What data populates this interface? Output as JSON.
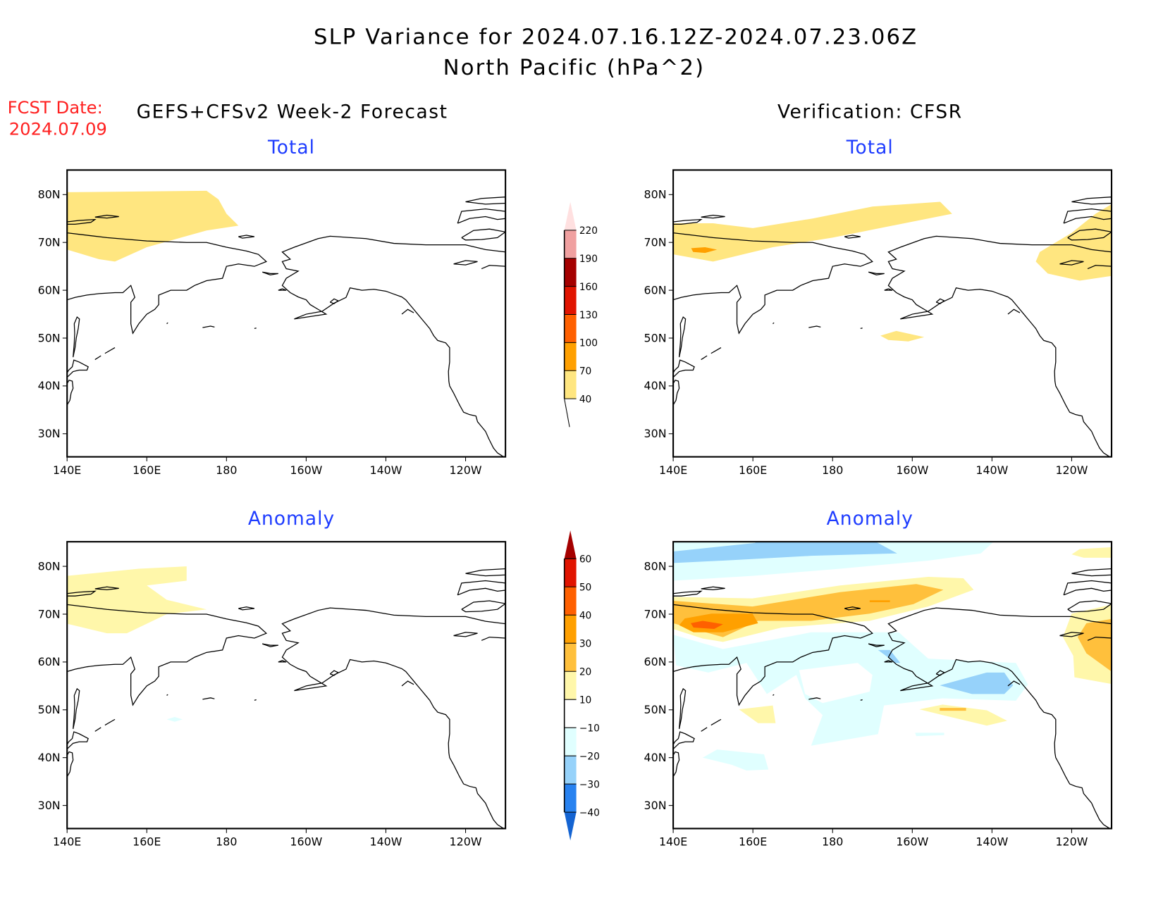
{
  "header": {
    "title": "SLP Variance for 2024.07.16.12Z-2024.07.23.06Z",
    "subtitle": "North Pacific (hPa^2)",
    "fcst_label": "FCST Date:",
    "fcst_date": "2024.07.09",
    "left_heading": "GEFS+CFSv2 Week-2 Forecast",
    "right_heading": "Verification: CFSR"
  },
  "chart_data": {
    "type": "heatmap",
    "map": {
      "lon_range_east": [
        140,
        250
      ],
      "lat_range": [
        25,
        85
      ]
    },
    "x_ticks": [
      "140E",
      "160E",
      "180",
      "160W",
      "140W",
      "120W"
    ],
    "x_tick_lons": [
      140,
      160,
      180,
      200,
      220,
      240
    ],
    "y_ticks": [
      "30N",
      "40N",
      "50N",
      "60N",
      "70N",
      "80N"
    ],
    "y_tick_lats": [
      30,
      40,
      50,
      60,
      70,
      80
    ],
    "colorbars": {
      "total": {
        "labels": [
          "40",
          "70",
          "100",
          "130",
          "160",
          "190",
          "220"
        ],
        "colors": [
          "#ffe680",
          "#ffa000",
          "#ff6000",
          "#e11400",
          "#a50000",
          "#f0a0a0",
          "#ffe0e0"
        ]
      },
      "anomaly": {
        "labels": [
          "-40",
          "-30",
          "-20",
          "-10",
          "10",
          "20",
          "30",
          "40",
          "50",
          "60"
        ],
        "colors": [
          "#1464d2",
          "#2882f0",
          "#96d2fa",
          "#e0ffff",
          "#ffffff",
          "#fff7aa",
          "#ffc03c",
          "#ffa000",
          "#ff6000",
          "#e11400",
          "#a50000"
        ]
      }
    },
    "panels": [
      {
        "id": "forecast-total",
        "title": "Total",
        "colorbar": "total",
        "regions": [
          {
            "range": "40-70",
            "color": "#ffe680",
            "lonlat": [
              [
                140,
                80.5
              ],
              [
                175,
                80.8
              ],
              [
                178,
                79
              ],
              [
                180,
                76
              ],
              [
                183,
                73.5
              ],
              [
                175,
                72.5
              ],
              [
                160,
                69
              ],
              [
                152,
                66
              ],
              [
                148,
                66.5
              ],
              [
                140,
                68.5
              ]
            ]
          }
        ]
      },
      {
        "id": "verification-total",
        "title": "Total",
        "colorbar": "total",
        "regions": [
          {
            "range": "40-70",
            "color": "#ffe680",
            "lonlat": [
              [
                140,
                74
              ],
              [
                150,
                74
              ],
              [
                160,
                73
              ],
              [
                175,
                75
              ],
              [
                190,
                77.5
              ],
              [
                207,
                78.5
              ],
              [
                210,
                76
              ],
              [
                195,
                73.5
              ],
              [
                180,
                71
              ],
              [
                165,
                69
              ],
              [
                150,
                66
              ],
              [
                140,
                67.5
              ]
            ]
          },
          {
            "range": "70-100",
            "color": "#ffa000",
            "lonlat": [
              [
                144.5,
                68.8
              ],
              [
                148,
                69
              ],
              [
                151,
                68.5
              ],
              [
                148,
                67.8
              ],
              [
                145,
                68
              ]
            ]
          },
          {
            "range": "40-70",
            "color": "#ffe680",
            "lonlat": [
              [
                232,
                68
              ],
              [
                240,
                72
              ],
              [
                246,
                76
              ],
              [
                250,
                78
              ],
              [
                250,
                63
              ],
              [
                242,
                62
              ],
              [
                234,
                63.5
              ],
              [
                231,
                66
              ]
            ]
          },
          {
            "range": "40-70",
            "color": "#ffe680",
            "lonlat": [
              [
                192,
                50.5
              ],
              [
                196,
                51.5
              ],
              [
                203,
                50.2
              ],
              [
                199,
                49.3
              ],
              [
                194,
                49.6
              ]
            ]
          }
        ]
      },
      {
        "id": "forecast-anomaly",
        "title": "Anomaly",
        "colorbar": "anomaly",
        "regions": [
          {
            "range": "10-20",
            "color": "#fff7aa",
            "lonlat": [
              [
                140,
                78
              ],
              [
                158,
                79.5
              ],
              [
                170,
                80
              ],
              [
                170,
                77
              ],
              [
                160,
                76
              ],
              [
                165,
                73
              ],
              [
                175,
                71
              ],
              [
                165,
                70
              ],
              [
                155,
                66
              ],
              [
                150,
                66
              ],
              [
                140,
                68
              ]
            ]
          },
          {
            "range": "-10--20",
            "color": "#e0ffff",
            "lonlat": [
              [
                165,
                48
              ],
              [
                167,
                48.5
              ],
              [
                169,
                48
              ],
              [
                167,
                47.5
              ]
            ]
          }
        ]
      },
      {
        "id": "verification-anomaly",
        "title": "Anomaly",
        "colorbar": "anomaly",
        "regions": [
          {
            "range": "-10--20",
            "color": "#e0ffff",
            "lonlat": [
              [
                140,
                85.2
              ],
              [
                220.5,
                85.2
              ],
              [
                217.2,
                82.7
              ],
              [
                204,
                81.2
              ],
              [
                181.9,
                79.5
              ],
              [
                159.9,
                78
              ],
              [
                140,
                77
              ]
            ]
          },
          {
            "range": "-20--30",
            "color": "#96d2fa",
            "lonlat": [
              [
                140,
                83.1
              ],
              [
                160.6,
                84.9
              ],
              [
                160.6,
                85.2
              ],
              [
                190.7,
                85.2
              ],
              [
                196.2,
                82.7
              ],
              [
                174.6,
                82.2
              ],
              [
                152.5,
                81.2
              ],
              [
                140,
                80.7
              ]
            ]
          },
          {
            "range": "-10--20",
            "color": "#e0ffff",
            "lonlat": [
              [
                140,
                65.7
              ],
              [
                152.5,
                62.7
              ],
              [
                174.6,
                66.2
              ],
              [
                196.6,
                66.2
              ],
              [
                204,
                60.7
              ],
              [
                226,
                59.8
              ],
              [
                229,
                55.3
              ],
              [
                226,
                51.9
              ],
              [
                207.6,
                52.4
              ],
              [
                192.9,
                50.9
              ],
              [
                191.4,
                44.9
              ],
              [
                174.6,
                42.5
              ],
              [
                177.5,
                48.9
              ],
              [
                173.1,
                52.4
              ],
              [
                170.9,
                57.3
              ],
              [
                163.5,
                53.3
              ],
              [
                158.4,
                59.8
              ],
              [
                148.8,
                57.8
              ],
              [
                140.7,
                59.3
              ]
            ]
          },
          {
            "range": "-10-10",
            "color": "#ffffff",
            "lonlat": [
              [
                171.6,
                58.3
              ],
              [
                186.3,
                59.8
              ],
              [
                190,
                57.3
              ],
              [
                189.3,
                53.8
              ],
              [
                177.5,
                51.4
              ],
              [
                173.1,
                53.3
              ]
            ]
          },
          {
            "range": "-20--30",
            "color": "#96d2fa",
            "lonlat": [
              [
                206.9,
                55.1
              ],
              [
                218.7,
                57.8
              ],
              [
                223.1,
                57.8
              ],
              [
                225.3,
                55.1
              ],
              [
                223.1,
                53.3
              ],
              [
                215,
                53.3
              ]
            ]
          },
          {
            "range": "-20--30",
            "color": "#96d2fa",
            "lonlat": [
              [
                191.4,
                62.5
              ],
              [
                194.4,
                62.5
              ],
              [
                197,
                59.8
              ],
              [
                195.8,
                59.8
              ]
            ]
          },
          {
            "range": "-10--20",
            "color": "#e0ffff",
            "lonlat": [
              [
                147.4,
                40
              ],
              [
                151,
                41.7
              ],
              [
                162.8,
                40.7
              ],
              [
                163.9,
                37.5
              ],
              [
                158.4,
                37.3
              ],
              [
                154.7,
                38.5
              ]
            ]
          },
          {
            "range": "-10--20",
            "color": "#e0ffff",
            "lonlat": [
              [
                200.7,
                45.2
              ],
              [
                208,
                45.2
              ],
              [
                208,
                44.7
              ],
              [
                201,
                44.5
              ]
            ]
          },
          {
            "range": "10-20",
            "color": "#fff7aa",
            "lonlat": [
              [
                140,
                73.6
              ],
              [
                159.9,
                73.3
              ],
              [
                181.9,
                76
              ],
              [
                204,
                77.8
              ],
              [
                212.8,
                77.5
              ],
              [
                215.4,
                75.1
              ],
              [
                204,
                71.6
              ],
              [
                189.3,
                68.6
              ],
              [
                167.2,
                67.2
              ],
              [
                152.5,
                64.2
              ],
              [
                147.4,
                64.9
              ],
              [
                140,
                66.9
              ]
            ]
          },
          {
            "range": "20-30",
            "color": "#ffc03c",
            "lonlat": [
              [
                140,
                72.8
              ],
              [
                159.9,
                71.6
              ],
              [
                181.9,
                74.6
              ],
              [
                201,
                76.3
              ],
              [
                207.8,
                75.1
              ],
              [
                200.3,
                72.1
              ],
              [
                189.3,
                70.1
              ],
              [
                174.6,
                68.6
              ],
              [
                161.3,
                68.6
              ],
              [
                152.5,
                65.2
              ],
              [
                140,
                68.1
              ]
            ]
          },
          {
            "range": "30-40",
            "color": "#ffa000",
            "lonlat": [
              [
                142.9,
                69.1
              ],
              [
                149.6,
                70.1
              ],
              [
                159.9,
                70.1
              ],
              [
                161.3,
                68.1
              ],
              [
                152.5,
                66.2
              ],
              [
                145.1,
                66.2
              ],
              [
                141.5,
                67.7
              ]
            ]
          },
          {
            "range": "30-40",
            "color": "#ffa000",
            "lonlat": [
              [
                189.3,
                72.9
              ],
              [
                194.4,
                72.9
              ],
              [
                194.4,
                72.5
              ],
              [
                189.3,
                72.5
              ]
            ]
          },
          {
            "range": "40-50",
            "color": "#ff6000",
            "lonlat": [
              [
                144.4,
                68.1
              ],
              [
                147.4,
                68.6
              ],
              [
                152.5,
                67.9
              ],
              [
                150.3,
                66.9
              ],
              [
                145.1,
                67.2
              ]
            ]
          },
          {
            "range": "10-20",
            "color": "#fff7aa",
            "lonlat": [
              [
                237.8,
                65.2
              ],
              [
                240,
                70.1
              ],
              [
                250,
                72
              ],
              [
                250,
                55.4
              ],
              [
                240.7,
                56.8
              ],
              [
                240.4,
                61.3
              ]
            ]
          },
          {
            "range": "20-30",
            "color": "#ffc03c",
            "lonlat": [
              [
                241.5,
                65.2
              ],
              [
                243.7,
                68.1
              ],
              [
                250,
                69
              ],
              [
                250,
                58
              ],
              [
                243.7,
                61.8
              ]
            ]
          },
          {
            "range": "10-20",
            "color": "#fff7aa",
            "lonlat": [
              [
                240,
                82.5
              ],
              [
                242,
                83.6
              ],
              [
                250,
                84
              ],
              [
                250,
                81.8
              ],
              [
                243,
                81.8
              ]
            ]
          },
          {
            "range": "10-20",
            "color": "#fff7aa",
            "lonlat": [
              [
                201.8,
                50.1
              ],
              [
                207.6,
                51.1
              ],
              [
                218.7,
                49.9
              ],
              [
                223.8,
                47.7
              ],
              [
                218.7,
                46.7
              ],
              [
                207.6,
                48.9
              ]
            ]
          },
          {
            "range": "20-30",
            "color": "#ffc03c",
            "lonlat": [
              [
                206.9,
                50.4
              ],
              [
                213.5,
                50.4
              ],
              [
                213.5,
                49.8
              ],
              [
                206.9,
                49.8
              ]
            ]
          },
          {
            "range": "10-20",
            "color": "#fff7aa",
            "lonlat": [
              [
                156.5,
                50.1
              ],
              [
                165,
                50.9
              ],
              [
                165.7,
                47.2
              ],
              [
                161.3,
                47.2
              ]
            ]
          }
        ]
      }
    ]
  }
}
